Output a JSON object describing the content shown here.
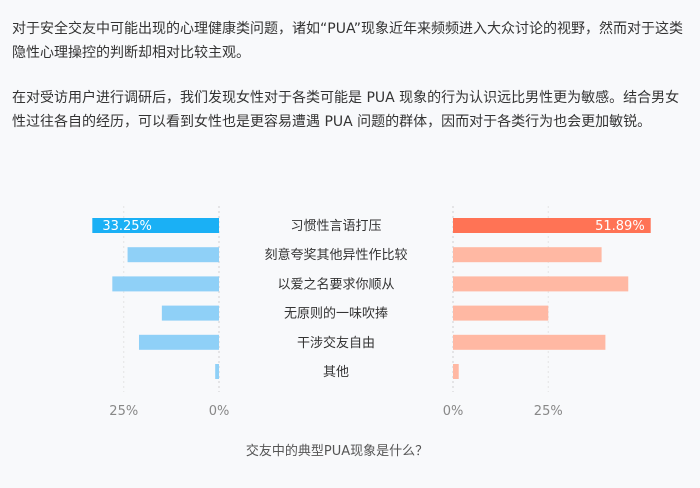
{
  "text": {
    "paragraph1": "对于安全交友中可能出现的心理健康类问题，诸如“PUA”现象近年来频频进入大众讨论的视野，然而对于这类隐性心理操控的判断却相对比较主观。",
    "paragraph2": "在对受访用户进行调研后，我们发现女性对于各类可能是 PUA 现象的行为认识远比男性更为敏感。结合男女性过往各自的经历，可以看到女性也是更容易遭遇 PUA 问题的群体，因而对于各类行为也会更加敏锐。"
  },
  "colors": {
    "male_highlight": "#1ab0f5",
    "male": "#8fd0f7",
    "female_highlight": "#ff7355",
    "female": "#ffb8a3"
  },
  "chart_data": {
    "type": "bar",
    "title": "交友中的典型PUA现象是什么？",
    "categories": [
      "习惯性言语打压",
      "刻意夸奖其他异性作比较",
      "以爱之名要求你顺从",
      "无原则的一味吹捧",
      "干涉交友自由",
      "其他"
    ],
    "series": [
      {
        "values": [
          33.25,
          24,
          28,
          15,
          21,
          1
        ],
        "direction": "left"
      },
      {
        "values": [
          51.89,
          39,
          46,
          25,
          40,
          1.5
        ],
        "direction": "right"
      }
    ],
    "data_labels": [
      "33.25%",
      "51.89%"
    ],
    "left_ticks": [
      {
        "label": "25%",
        "value": 25
      },
      {
        "label": "0%",
        "value": 0
      }
    ],
    "right_ticks": [
      {
        "label": "0%",
        "value": 0
      },
      {
        "label": "25%",
        "value": 25
      }
    ],
    "grid": true
  }
}
